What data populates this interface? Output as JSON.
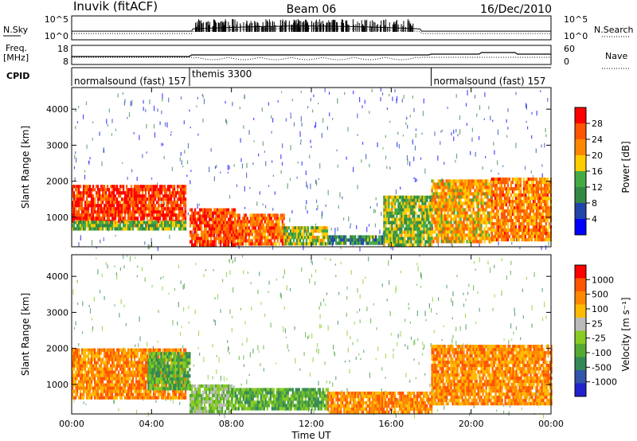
{
  "header": {
    "station": "Inuvik (fitACF)",
    "beam": "Beam 06",
    "date": "16/Dec/2010"
  },
  "noise_panel": {
    "left_label": "N.Sky",
    "right_label": "N.Search",
    "left_ticks": [
      "10^5",
      "10^0"
    ],
    "right_ticks": [
      "10^5",
      "10^0"
    ]
  },
  "freq_panel": {
    "left_label_1": "Freq.",
    "left_label_2": "[MHz]",
    "right_label": "Nave",
    "left_ticks": [
      "18",
      "8"
    ],
    "right_ticks": [
      "60",
      "0"
    ]
  },
  "cpid": {
    "label": "CPID",
    "segments": [
      {
        "name": "normalsound (fast) 157",
        "start_hour": 0,
        "end_hour": 5.9
      },
      {
        "name": "themis 3300",
        "start_hour": 5.9,
        "end_hour": 18.0
      },
      {
        "name": "normalsound (fast) 157",
        "start_hour": 18.0,
        "end_hour": 24
      }
    ]
  },
  "colors": {
    "power_scale": [
      "#0000ff",
      "#2244aa",
      "#338844",
      "#44aa44",
      "#ffcc00",
      "#ff8800",
      "#ff5500",
      "#ff0000"
    ],
    "velocity_scale": [
      "#2222cc",
      "#3355aa",
      "#338855",
      "#55aa33",
      "#88cc22",
      "#bbbbbb",
      "#ffbb00",
      "#ff8800",
      "#ff5500",
      "#ff0000"
    ]
  },
  "chart_data": [
    {
      "type": "heatmap",
      "name": "power",
      "ylabel": "Slant Range [km]",
      "xlim_hours": [
        0,
        24
      ],
      "ylim": [
        180,
        4600
      ],
      "yticks": [
        "1000",
        "2000",
        "3000",
        "4000"
      ],
      "colorbar_label": "Power [dB]",
      "colorbar_ticks": [
        "28",
        "24",
        "20",
        "16",
        "12",
        "8",
        "4"
      ],
      "regions": [
        {
          "t0": 0.0,
          "t1": 5.7,
          "r0": 900,
          "r1": 1900,
          "level": 0.92
        },
        {
          "t0": 0.0,
          "t1": 5.7,
          "r0": 650,
          "r1": 900,
          "level": 0.45
        },
        {
          "t0": 5.9,
          "t1": 8.2,
          "r0": 250,
          "r1": 1250,
          "level": 0.88
        },
        {
          "t0": 8.2,
          "t1": 10.6,
          "r0": 300,
          "r1": 1100,
          "level": 0.8
        },
        {
          "t0": 10.6,
          "t1": 12.8,
          "r0": 300,
          "r1": 750,
          "level": 0.5
        },
        {
          "t0": 12.8,
          "t1": 15.6,
          "r0": 250,
          "r1": 500,
          "level": 0.3
        },
        {
          "t0": 15.6,
          "t1": 18.0,
          "r0": 250,
          "r1": 1600,
          "level": 0.45
        },
        {
          "t0": 18.0,
          "t1": 21.0,
          "r0": 350,
          "r1": 2050,
          "level": 0.65
        },
        {
          "t0": 21.0,
          "t1": 24.0,
          "r0": 400,
          "r1": 2100,
          "level": 0.75
        }
      ]
    },
    {
      "type": "heatmap",
      "name": "velocity",
      "ylabel": "Slant Range [km]",
      "xlabel": "Time UT",
      "xlim_hours": [
        0,
        24
      ],
      "ylim": [
        180,
        4600
      ],
      "yticks": [
        "1000",
        "2000",
        "3000",
        "4000"
      ],
      "xticks": [
        "00:00",
        "04:00",
        "08:00",
        "12:00",
        "16:00",
        "20:00",
        "00:00"
      ],
      "colorbar_label": "Velocity [m s⁻¹]",
      "colorbar_ticks": [
        "1000",
        "500",
        "100",
        "25",
        "-25",
        "-100",
        "-500",
        "-1000"
      ],
      "regions": [
        {
          "t0": 0.0,
          "t1": 5.7,
          "r0": 650,
          "r1": 2000,
          "level": 0.25
        },
        {
          "t0": 3.8,
          "t1": 5.9,
          "r0": 900,
          "r1": 1900,
          "level": 0.72
        },
        {
          "t0": 5.9,
          "t1": 8.0,
          "r0": 250,
          "r1": 1000,
          "level": 0.6
        },
        {
          "t0": 8.0,
          "t1": 12.8,
          "r0": 300,
          "r1": 900,
          "level": 0.62
        },
        {
          "t0": 12.8,
          "t1": 18.0,
          "r0": 250,
          "r1": 800,
          "level": 0.2
        },
        {
          "t0": 18.0,
          "t1": 24.0,
          "r0": 450,
          "r1": 2100,
          "level": 0.18
        }
      ]
    }
  ]
}
